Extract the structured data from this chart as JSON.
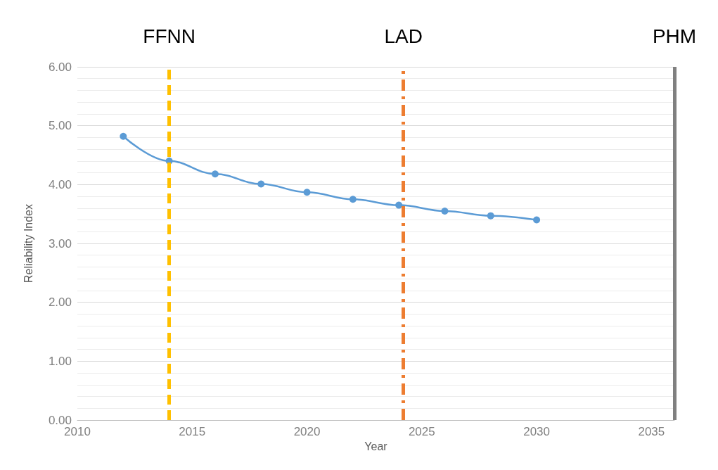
{
  "chart_data": {
    "type": "line",
    "xlabel": "Year",
    "ylabel": "Reliability Index",
    "x": [
      2012,
      2014,
      2016,
      2018,
      2020,
      2022,
      2024,
      2026,
      2028,
      2030
    ],
    "series": [
      {
        "color": "#5b9bd5",
        "values": [
          4.82,
          4.4,
          4.18,
          4.01,
          3.87,
          3.75,
          3.65,
          3.55,
          3.47,
          3.4
        ]
      }
    ],
    "xlim": [
      2010,
      2036
    ],
    "xticks": [
      2010,
      2015,
      2020,
      2025,
      2030,
      2035
    ],
    "ylim": [
      0,
      6
    ],
    "yticks": [
      {
        "value": 0,
        "label": "0.00"
      },
      {
        "value": 1,
        "label": "1.00"
      },
      {
        "value": 2,
        "label": "2.00"
      },
      {
        "value": 3,
        "label": "3.00"
      },
      {
        "value": 4,
        "label": "4.00"
      },
      {
        "value": 5,
        "label": "5.00"
      },
      {
        "value": 6,
        "label": "6.00"
      }
    ],
    "ref_lines": [
      {
        "axis": "x",
        "value": 2014,
        "label": "FFNN",
        "color": "#ffc000",
        "line_style": "dashed"
      },
      {
        "axis": "x",
        "value": 2024.2,
        "label": "LAD",
        "color": "#ed7d31",
        "line_style": "dashdot"
      },
      {
        "axis": "x",
        "value": 2036,
        "label": "PHM",
        "color": "#808080",
        "line_style": "solid"
      }
    ],
    "grid": "y",
    "marker": "circle",
    "line_style": "solid"
  }
}
